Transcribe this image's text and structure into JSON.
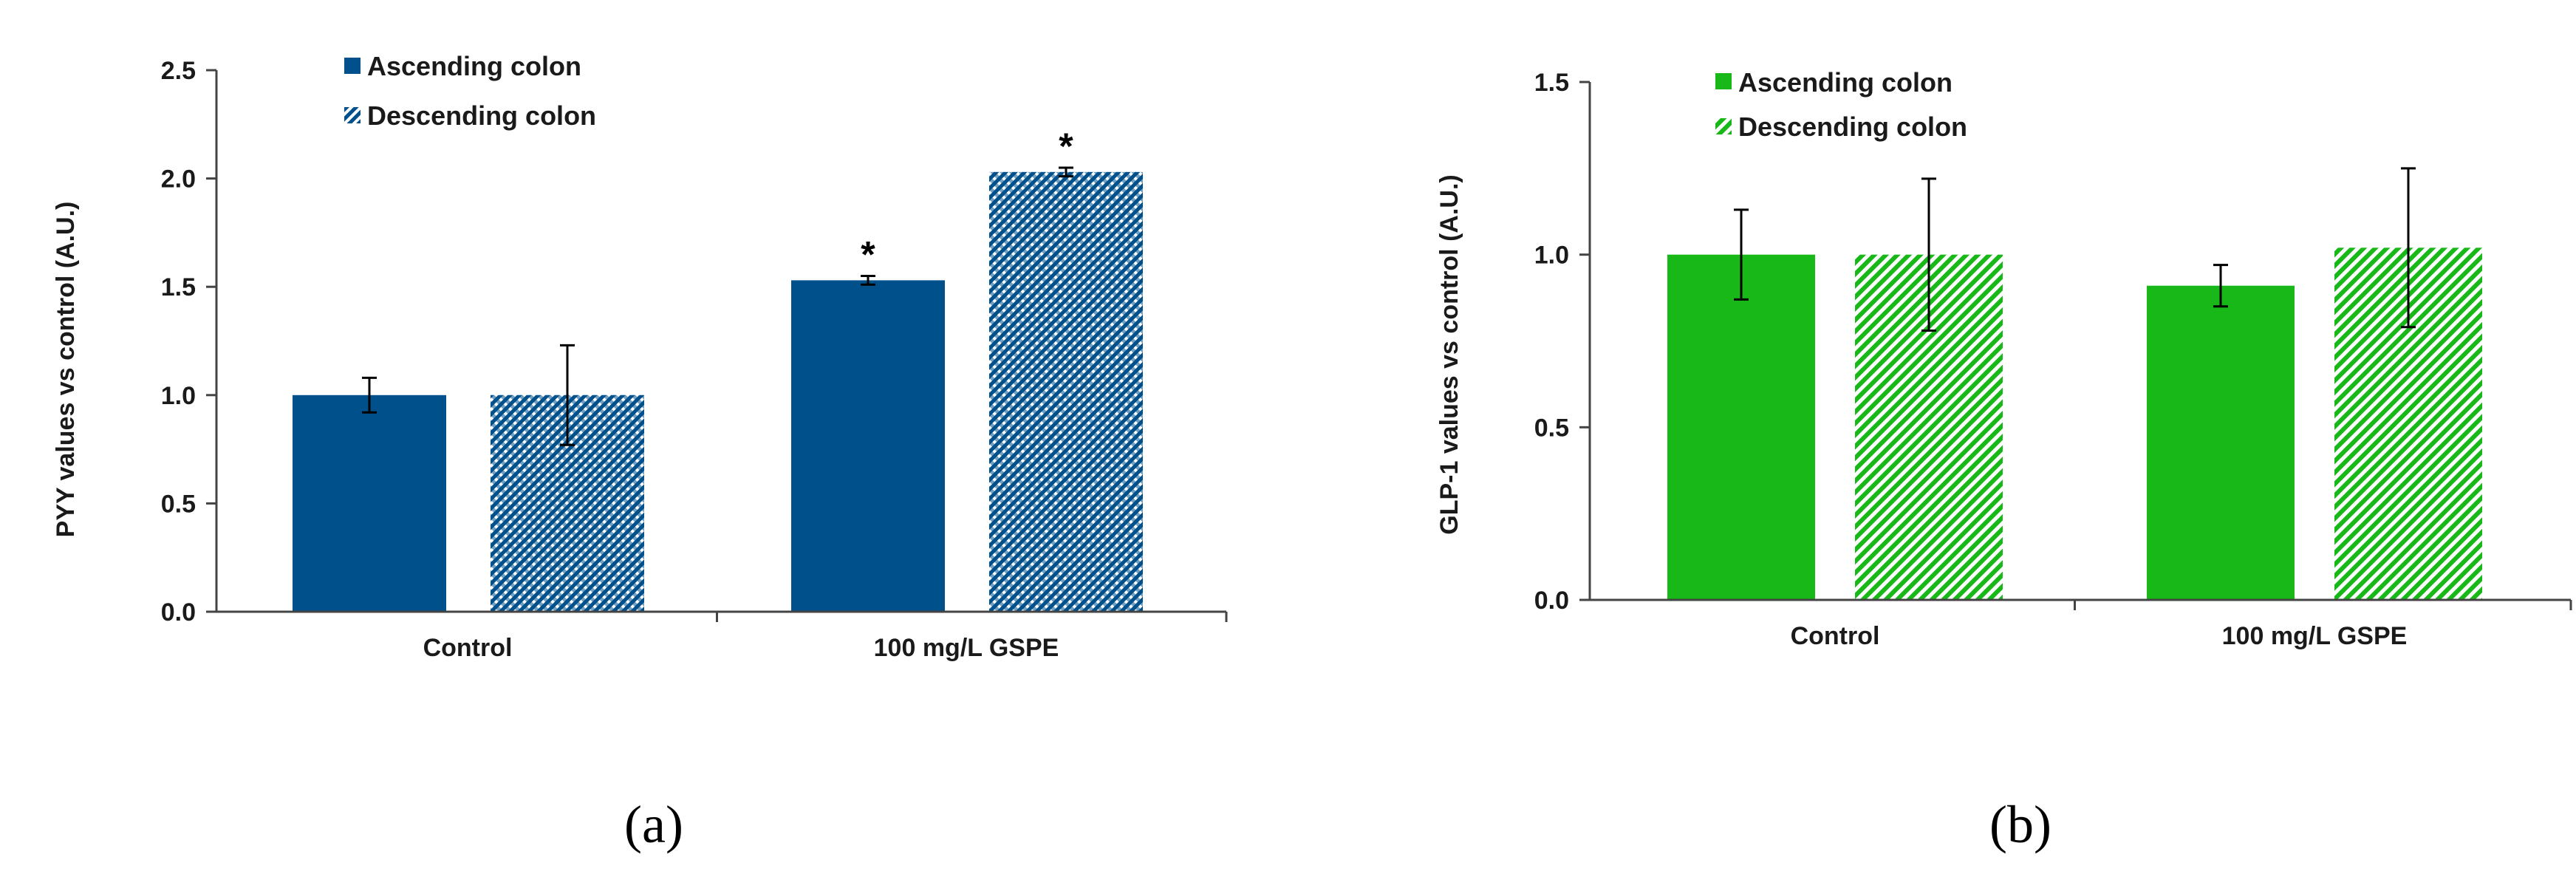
{
  "chart_data": [
    {
      "type": "bar",
      "panel_label": "(a)",
      "ylabel": "PYY values vs control (A.U.)",
      "xlabel": "",
      "ylim": [
        0,
        2.5
      ],
      "yticks": [
        "0.0",
        "0.5",
        "1.0",
        "1.5",
        "2.0",
        "2.5"
      ],
      "categories": [
        "Control",
        "100 mg/L GSPE"
      ],
      "series": [
        {
          "name": "Ascending colon",
          "fill": "solid",
          "color": "#00508c",
          "values": [
            1.0,
            1.53
          ],
          "errors": [
            0.08,
            0.02
          ]
        },
        {
          "name": "Descending colon",
          "fill": "hatched",
          "color": "#00508c",
          "values": [
            1.0,
            2.03
          ],
          "errors": [
            0.23,
            0.02
          ]
        }
      ],
      "significance": [
        [
          null,
          "*"
        ],
        [
          null,
          "*"
        ]
      ],
      "legend_position": "top-left",
      "grid": false
    },
    {
      "type": "bar",
      "panel_label": "(b)",
      "ylabel": "GLP-1 values vs control (A.U.)",
      "xlabel": "",
      "ylim": [
        0,
        1.5
      ],
      "yticks": [
        "0.0",
        "0.5",
        "1.0",
        "1.5"
      ],
      "categories": [
        "Control",
        "100 mg/L GSPE"
      ],
      "series": [
        {
          "name": "Ascending colon",
          "fill": "solid",
          "color": "#17b817",
          "values": [
            1.0,
            0.91
          ],
          "errors": [
            0.13,
            0.06
          ]
        },
        {
          "name": "Descending colon",
          "fill": "hatched",
          "color": "#17b817",
          "values": [
            1.0,
            1.02
          ],
          "errors": [
            0.22,
            0.23
          ]
        }
      ],
      "significance": [
        [
          null,
          null
        ],
        [
          null,
          null
        ]
      ],
      "legend_position": "top-left",
      "grid": false
    }
  ]
}
